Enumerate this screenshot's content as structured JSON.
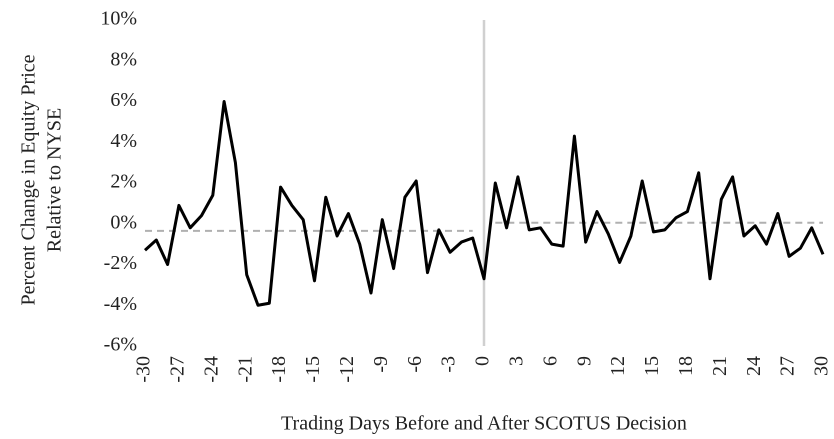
{
  "chart_data": {
    "type": "line",
    "y_label": [
      "Percent Change in Equity Price",
      "Relative to NYSE"
    ],
    "x_label": "Trading Days Before and After SCOTUS Decision",
    "x": [
      -30,
      -29,
      -28,
      -27,
      -26,
      -25,
      -24,
      -23,
      -22,
      -21,
      -20,
      -19,
      -18,
      -17,
      -16,
      -15,
      -14,
      -13,
      -12,
      -11,
      -10,
      -9,
      -8,
      -7,
      -6,
      -5,
      -4,
      -3,
      -2,
      -1,
      0,
      1,
      2,
      3,
      4,
      5,
      6,
      7,
      8,
      9,
      10,
      11,
      12,
      13,
      14,
      15,
      16,
      17,
      18,
      19,
      20,
      21,
      22,
      23,
      24,
      25,
      26,
      27,
      28,
      29,
      30
    ],
    "values": [
      -1.3,
      -0.8,
      -2.0,
      0.9,
      -0.2,
      0.4,
      1.4,
      6.0,
      3.0,
      -2.5,
      -4.0,
      -3.9,
      1.8,
      0.9,
      0.2,
      -2.8,
      1.3,
      -0.6,
      0.5,
      -1.0,
      -3.4,
      0.2,
      -2.2,
      1.3,
      2.1,
      -2.4,
      -0.3,
      -1.4,
      -0.9,
      -0.7,
      -2.7,
      2.0,
      -0.2,
      2.3,
      -0.3,
      -0.2,
      -1.0,
      -1.1,
      4.3,
      -0.9,
      0.6,
      -0.5,
      -1.9,
      -0.6,
      2.1,
      -0.4,
      -0.3,
      0.3,
      0.6,
      2.5,
      -2.7,
      1.2,
      2.3,
      -0.6,
      -0.1,
      -1.0,
      0.5,
      -1.6,
      -1.2,
      -0.2,
      -1.5
    ],
    "color": "#000000",
    "mean_lines": [
      {
        "x": [
          -30,
          -1
        ],
        "value": -0.35
      },
      {
        "x": [
          1,
          30
        ],
        "value": 0.05
      }
    ],
    "mean_color": "#b0b0b0",
    "vline": 0,
    "vline_color": "#d0d0d0",
    "xlim": [
      -30,
      30
    ],
    "xticks": [
      -30,
      -27,
      -24,
      -21,
      -18,
      -15,
      -12,
      -9,
      -6,
      -3,
      0,
      3,
      6,
      9,
      12,
      15,
      18,
      21,
      24,
      27,
      30
    ],
    "ylim": [
      -6,
      10
    ],
    "yticks": [
      {
        "value": -6,
        "label": "-6%"
      },
      {
        "value": -4,
        "label": "-4%"
      },
      {
        "value": -2,
        "label": "-2%"
      },
      {
        "value": 0,
        "label": "0%"
      },
      {
        "value": 2,
        "label": "2%"
      },
      {
        "value": 4,
        "label": "4%"
      },
      {
        "value": 6,
        "label": "6%"
      },
      {
        "value": 8,
        "label": "8%"
      },
      {
        "value": 10,
        "label": "10%"
      }
    ],
    "grid": false
  }
}
